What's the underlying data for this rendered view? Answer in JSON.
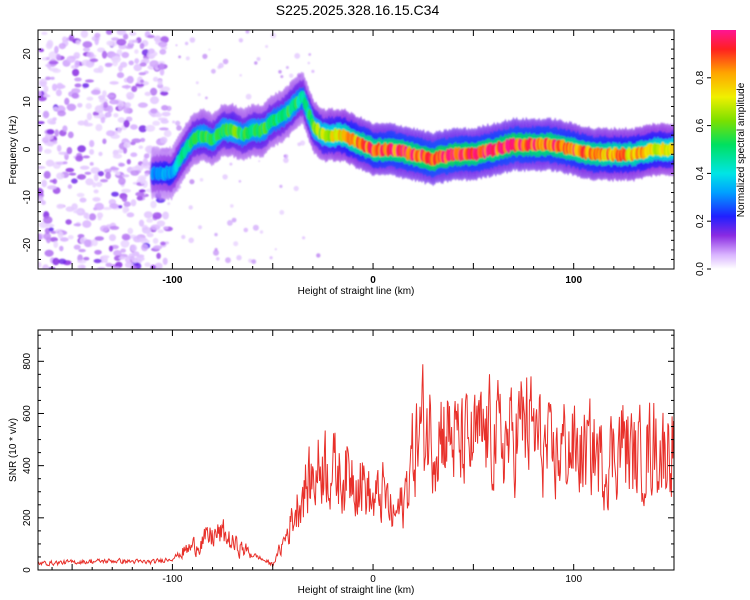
{
  "title": "S225.2025.328.16.15.C34",
  "chart_data": [
    {
      "type": "heatmap",
      "name": "spectrogram",
      "xlabel": "Height of straight line (km)",
      "ylabel": "Frequency (Hz)",
      "xlim": [
        -167,
        150
      ],
      "ylim": [
        -25,
        25
      ],
      "xticks": [
        -100,
        0,
        100
      ],
      "yticks": [
        -20,
        -10,
        0,
        10,
        20
      ],
      "colorbar": {
        "label": "Normalized spectral amplitude",
        "range": [
          0,
          1
        ],
        "ticks": [
          0.0,
          0.2,
          0.4,
          0.6,
          0.8
        ],
        "tick_labels": [
          "0.0",
          "0.2",
          "0.4",
          "0.6",
          "0.8"
        ]
      },
      "ridge": {
        "x": [
          -110,
          -100,
          -95,
          -90,
          -85,
          -80,
          -75,
          -70,
          -65,
          -60,
          -55,
          -50,
          -45,
          -40,
          -35,
          -30,
          -25,
          -20,
          -15,
          -10,
          -5,
          0,
          10,
          20,
          30,
          40,
          50,
          60,
          70,
          80,
          90,
          100,
          110,
          120,
          130,
          140,
          150
        ],
        "y": [
          -5,
          -5,
          -1,
          2,
          3,
          2,
          4,
          4,
          3,
          4,
          4,
          6,
          7,
          9,
          11,
          5,
          3,
          3,
          3,
          2,
          1,
          0,
          0,
          -1,
          -2,
          -1,
          -1,
          0,
          1,
          1,
          1,
          0,
          -1,
          -1,
          -1,
          0,
          0
        ],
        "amplitude": [
          0.3,
          0.35,
          0.45,
          0.5,
          0.55,
          0.5,
          0.55,
          0.6,
          0.5,
          0.55,
          0.55,
          0.5,
          0.5,
          0.55,
          0.45,
          0.6,
          0.65,
          0.7,
          0.75,
          0.8,
          0.85,
          0.85,
          0.9,
          0.9,
          0.95,
          0.95,
          0.9,
          0.9,
          0.95,
          0.9,
          0.9,
          0.85,
          0.85,
          0.8,
          0.8,
          0.75,
          0.7
        ]
      }
    },
    {
      "type": "line",
      "name": "snr",
      "xlabel": "Height of straight line (km)",
      "ylabel": "SNR (10 * v/v)",
      "xlim": [
        -167,
        150
      ],
      "ylim": [
        0,
        920
      ],
      "xticks": [
        -100,
        0,
        100
      ],
      "yticks": [
        0,
        200,
        400,
        600,
        800
      ],
      "color": "#e8302a",
      "series": [
        {
          "name": "SNR",
          "x": [
            -167,
            -150,
            -130,
            -110,
            -100,
            -90,
            -85,
            -80,
            -75,
            -70,
            -65,
            -60,
            -55,
            -50,
            -45,
            -40,
            -35,
            -30,
            -25,
            -20,
            -15,
            -10,
            -5,
            0,
            5,
            10,
            15,
            20,
            25,
            30,
            35,
            40,
            45,
            50,
            55,
            60,
            65,
            70,
            75,
            80,
            85,
            90,
            95,
            100,
            105,
            110,
            115,
            120,
            125,
            130,
            135,
            140,
            145,
            150
          ],
          "y": [
            25,
            30,
            35,
            30,
            45,
            90,
            110,
            130,
            140,
            100,
            80,
            60,
            40,
            20,
            100,
            200,
            300,
            350,
            420,
            380,
            360,
            380,
            340,
            250,
            300,
            200,
            250,
            450,
            560,
            520,
            550,
            500,
            470,
            480,
            510,
            520,
            490,
            500,
            570,
            530,
            460,
            420,
            480,
            460,
            440,
            460,
            400,
            460,
            500,
            420,
            450,
            480,
            450,
            520
          ]
        }
      ]
    }
  ]
}
